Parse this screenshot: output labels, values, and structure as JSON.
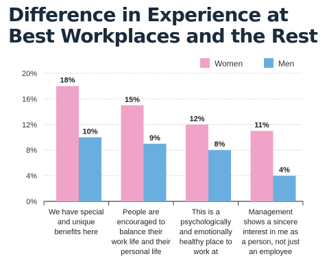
{
  "title_lines": [
    "Difference in Experience at",
    "Best Workplaces and the Rest"
  ],
  "chart_data": {
    "type": "bar",
    "title": "Difference in Experience at Best Workplaces and the Rest",
    "categories": [
      [
        "We have special",
        "and unique",
        "benefits here"
      ],
      [
        "People are",
        "encouraged to",
        "balance their",
        "work life and their",
        "personal life"
      ],
      [
        "This is a",
        "psychologically",
        "and emotionally",
        "healthy place to",
        "work at"
      ],
      [
        "Management",
        "shows a sincere",
        "interest in me as",
        "a person, not just",
        "an employee"
      ]
    ],
    "series": [
      {
        "name": "Women",
        "values": [
          18,
          15,
          12,
          11
        ],
        "labels": [
          "18%",
          "15%",
          "12%",
          "11%"
        ],
        "color": "#f0a3c8"
      },
      {
        "name": "Men",
        "values": [
          10,
          9,
          8,
          4
        ],
        "labels": [
          "10%",
          "9%",
          "8%",
          "4%"
        ],
        "color": "#6aaee0"
      }
    ],
    "y_ticks": [
      0,
      4,
      8,
      12,
      16,
      20
    ],
    "y_tick_labels": [
      "0%",
      "4%",
      "8%",
      "12%",
      "16%",
      "20%"
    ],
    "ylim": [
      0,
      20
    ],
    "grid": true,
    "legend_position": "top-right",
    "xlabel": "",
    "ylabel": ""
  }
}
